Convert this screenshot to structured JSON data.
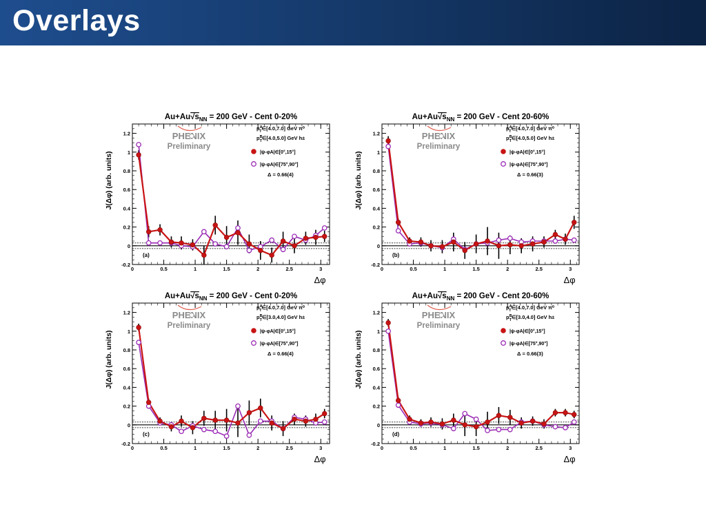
{
  "slide": {
    "title": "Overlays"
  },
  "colors": {
    "header": "#1e4d8e",
    "series_filled": "#c81414",
    "series_open": "#9a2ab5",
    "errorbar": "#000000"
  },
  "chart_data": [
    {
      "type": "line",
      "panel_label": "(a)",
      "title": "Au+Au√sNN = 200 GeV - Cent 0-20%",
      "title_parts": {
        "pre": "Au+Au",
        "s": "s",
        "nn": "NN",
        "post": " = 200 GeV - Cent 0-20%"
      },
      "xlabel": "Δφ",
      "ylabel": "J(Δφ) (arb. units)",
      "xlim": [
        0,
        3.14
      ],
      "ylim": [
        -0.2,
        1.3
      ],
      "xticks": [
        "0",
        "0.5",
        "1",
        "1.5",
        "2",
        "2.5",
        "3"
      ],
      "yticks": [
        "-0.2",
        "0",
        "0.2",
        "0.4",
        "0.6",
        "0.8",
        "1",
        "1.2"
      ],
      "logo": {
        "word": "PHENIX",
        "sub": "Preliminary"
      },
      "info": {
        "ptA": "∈[4.0,7.0] GeV π⁰",
        "ptB": "∈[4.0,5.0] GeV h±",
        "delta": "Δ = 0.66(4)"
      },
      "legend": [
        "|ψ-φA|∈[0°,15°]",
        "|ψ-φA|∈[75°,90°]"
      ],
      "x": [
        0.1,
        0.26,
        0.44,
        0.62,
        0.78,
        0.96,
        1.14,
        1.32,
        1.5,
        1.68,
        1.86,
        2.04,
        2.22,
        2.4,
        2.58,
        2.76,
        2.92,
        3.06
      ],
      "series": [
        {
          "values": [
            0.97,
            0.15,
            0.17,
            0.04,
            0.03,
            0.01,
            -0.1,
            0.22,
            0.09,
            0.14,
            0.02,
            -0.05,
            -0.1,
            0.05,
            0.0,
            0.08,
            0.09,
            0.1
          ],
          "errors": [
            0.05,
            0.06,
            0.06,
            0.06,
            0.07,
            0.06,
            0.1,
            0.1,
            0.12,
            0.13,
            0.1,
            0.1,
            0.08,
            0.1,
            0.08,
            0.07,
            0.08,
            0.06
          ]
        },
        {
          "values": [
            1.08,
            0.03,
            0.03,
            0.03,
            0.0,
            -0.01,
            0.15,
            0.02,
            -0.01,
            0.19,
            -0.05,
            -0.01,
            0.06,
            -0.04,
            0.1,
            0.06,
            0.11,
            0.19
          ]
        }
      ]
    },
    {
      "type": "line",
      "panel_label": "(b)",
      "title": "Au+Au√sNN = 200 GeV - Cent 20-60%",
      "title_parts": {
        "pre": "Au+Au",
        "s": "s",
        "nn": "NN",
        "post": " = 200 GeV - Cent 20-60%"
      },
      "xlabel": "Δφ",
      "ylabel": "J(Δφ) (arb. units)",
      "xlim": [
        0,
        3.14
      ],
      "ylim": [
        -0.2,
        1.3
      ],
      "xticks": [
        "0",
        "0.5",
        "1",
        "1.5",
        "2",
        "2.5",
        "3"
      ],
      "yticks": [
        "-0.2",
        "0",
        "0.2",
        "0.4",
        "0.6",
        "0.8",
        "1",
        "1.2"
      ],
      "logo": {
        "word": "PHENIX",
        "sub": "Preliminary"
      },
      "info": {
        "ptA": "∈[4.0,7.0] GeV π⁰",
        "ptB": "∈[4.0,5.0] GeV h±",
        "delta": "Δ = 0.66(3)"
      },
      "legend": [
        "|ψ-φA|∈[0°,15°]",
        "|ψ-φA|∈[75°,90°]"
      ],
      "x": [
        0.1,
        0.26,
        0.44,
        0.62,
        0.78,
        0.96,
        1.14,
        1.32,
        1.5,
        1.68,
        1.86,
        2.04,
        2.22,
        2.4,
        2.58,
        2.76,
        2.92,
        3.06
      ],
      "series": [
        {
          "values": [
            1.12,
            0.25,
            0.05,
            0.04,
            0.0,
            -0.01,
            0.04,
            -0.05,
            0.02,
            0.05,
            0.0,
            0.01,
            0.0,
            0.02,
            0.04,
            0.12,
            0.07,
            0.25
          ],
          "errors": [
            0.05,
            0.04,
            0.04,
            0.05,
            0.06,
            0.07,
            0.1,
            0.09,
            0.1,
            0.15,
            0.14,
            0.1,
            0.08,
            0.08,
            0.06,
            0.05,
            0.06,
            0.07
          ]
        },
        {
          "values": [
            1.06,
            0.16,
            0.02,
            0.03,
            0.0,
            -0.02,
            0.07,
            -0.04,
            0.02,
            0.03,
            0.06,
            0.08,
            0.04,
            0.05,
            0.05,
            0.05,
            0.07,
            0.06
          ]
        }
      ]
    },
    {
      "type": "line",
      "panel_label": "(c)",
      "title": "Au+Au√sNN = 200 GeV - Cent 0-20%",
      "title_parts": {
        "pre": "Au+Au",
        "s": "s",
        "nn": "NN",
        "post": " = 200 GeV - Cent 0-20%"
      },
      "xlabel": "Δφ",
      "ylabel": "J(Δφ) (arb. units)",
      "xlim": [
        0,
        3.14
      ],
      "ylim": [
        -0.2,
        1.3
      ],
      "xticks": [
        "0",
        "0.5",
        "1",
        "1.5",
        "2",
        "2.5",
        "3"
      ],
      "yticks": [
        "-0.2",
        "0",
        "0.2",
        "0.4",
        "0.6",
        "0.8",
        "1",
        "1.2"
      ],
      "logo": {
        "word": "PHENIX",
        "sub": "Preliminary"
      },
      "info": {
        "ptA": "∈[4.0,7.0] GeV π⁰",
        "ptB": "∈[3.0,4.0] GeV h±",
        "delta": "Δ = 0.66(4)"
      },
      "legend": [
        "|ψ-φA|∈[0°,15°]",
        "|ψ-φA|∈[75°,90°]"
      ],
      "x": [
        0.1,
        0.26,
        0.44,
        0.62,
        0.78,
        0.96,
        1.14,
        1.32,
        1.5,
        1.68,
        1.86,
        2.04,
        2.22,
        2.4,
        2.58,
        2.76,
        2.92,
        3.06
      ],
      "series": [
        {
          "values": [
            1.04,
            0.24,
            0.04,
            -0.02,
            0.04,
            -0.03,
            0.07,
            0.05,
            0.05,
            0.02,
            0.13,
            0.18,
            0.02,
            -0.04,
            0.06,
            0.04,
            0.06,
            0.12
          ],
          "errors": [
            0.04,
            0.04,
            0.04,
            0.05,
            0.06,
            0.07,
            0.08,
            0.1,
            0.12,
            0.15,
            0.13,
            0.1,
            0.08,
            0.08,
            0.06,
            0.06,
            0.06,
            0.05
          ]
        },
        {
          "values": [
            0.88,
            0.2,
            0.02,
            0.0,
            -0.07,
            -0.01,
            -0.05,
            -0.07,
            -0.12,
            0.2,
            -0.11,
            0.04,
            0.04,
            -0.04,
            0.08,
            0.06,
            0.02,
            0.03
          ]
        }
      ]
    },
    {
      "type": "line",
      "panel_label": "(d)",
      "title": "Au+Au√sNN = 200 GeV - Cent 20-60%",
      "title_parts": {
        "pre": "Au+Au",
        "s": "s",
        "nn": "NN",
        "post": " = 200 GeV - Cent 20-60%"
      },
      "xlabel": "Δφ",
      "ylabel": "J(Δφ) (arb. units)",
      "xlim": [
        0,
        3.14
      ],
      "ylim": [
        -0.2,
        1.3
      ],
      "xticks": [
        "0",
        "0.5",
        "1",
        "1.5",
        "2",
        "2.5",
        "3"
      ],
      "yticks": [
        "-0.2",
        "0",
        "0.2",
        "0.4",
        "0.6",
        "0.8",
        "1",
        "1.2"
      ],
      "logo": {
        "word": "PHENIX",
        "sub": "Preliminary"
      },
      "info": {
        "ptA": "∈[4.0,7.0] GeV π⁰",
        "ptB": "∈[3.0,4.0] GeV h±",
        "delta": "Δ = 0.66(3)"
      },
      "legend": [
        "|ψ-φA|∈[0°,15°]",
        "|ψ-φA|∈[75°,90°]"
      ],
      "x": [
        0.1,
        0.26,
        0.44,
        0.62,
        0.78,
        0.96,
        1.14,
        1.32,
        1.5,
        1.68,
        1.86,
        2.04,
        2.22,
        2.4,
        2.58,
        2.76,
        2.92,
        3.06
      ],
      "series": [
        {
          "values": [
            1.09,
            0.26,
            0.06,
            0.02,
            0.03,
            0.01,
            0.05,
            0.0,
            -0.02,
            0.03,
            0.1,
            0.08,
            0.02,
            0.04,
            0.01,
            0.13,
            0.13,
            0.11
          ],
          "errors": [
            0.04,
            0.04,
            0.04,
            0.04,
            0.05,
            0.06,
            0.07,
            0.12,
            0.1,
            0.11,
            0.09,
            0.08,
            0.06,
            0.05,
            0.05,
            0.04,
            0.04,
            0.04
          ]
        },
        {
          "values": [
            1.0,
            0.21,
            0.03,
            0.01,
            0.02,
            0.0,
            -0.04,
            0.12,
            0.06,
            -0.06,
            -0.05,
            -0.05,
            0.03,
            0.04,
            0.0,
            -0.02,
            -0.03,
            0.03
          ]
        }
      ]
    }
  ]
}
